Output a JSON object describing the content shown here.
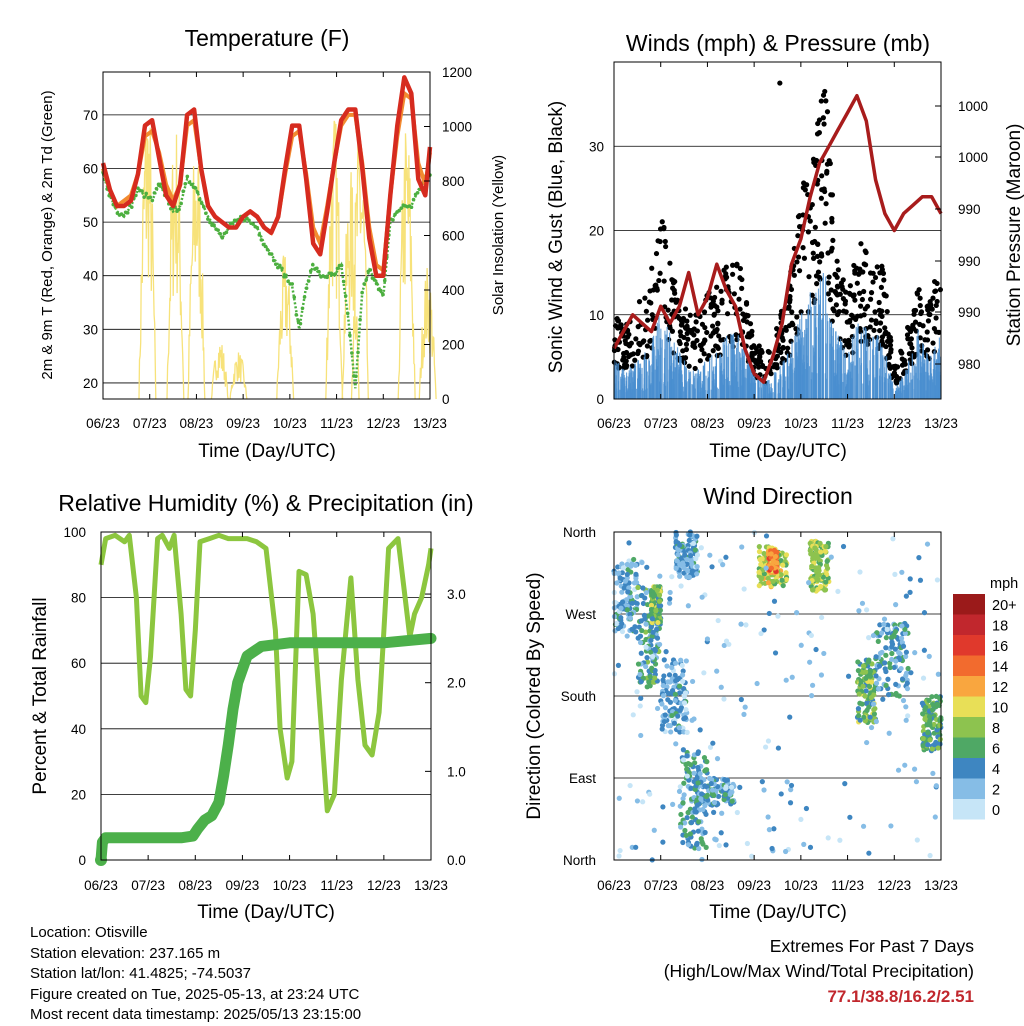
{
  "chart_data": [
    {
      "type": "line",
      "title": "Temperature (F)",
      "xlabel": "Time (Day/UTC)",
      "ylabel": "2m & 9m T (Red, Orange) & 2m Td (Green)",
      "y2label": "Solar Insolation (Yellow)",
      "x_ticks": [
        "06/23",
        "07/23",
        "08/23",
        "09/23",
        "10/23",
        "11/23",
        "12/23",
        "13/23"
      ],
      "ylim": [
        17,
        78
      ],
      "y_ticks": [
        20,
        30,
        40,
        50,
        60,
        70
      ],
      "y2lim": [
        0,
        1200
      ],
      "y2_ticks": [
        0,
        200,
        400,
        600,
        800,
        1000,
        1200
      ],
      "grid": true,
      "colors": {
        "t2m": "#d62b1f",
        "t9m": "#f28b30",
        "td": "#4caf3f",
        "solar": "#f7e27a"
      },
      "series": [
        {
          "key": "t2m",
          "x": [
            0,
            0.15,
            0.3,
            0.45,
            0.6,
            0.75,
            0.9,
            1.05,
            1.2,
            1.35,
            1.5,
            1.65,
            1.8,
            1.95,
            2.1,
            2.25,
            2.4,
            2.55,
            2.7,
            2.85,
            3.0,
            3.15,
            3.3,
            3.45,
            3.6,
            3.75,
            3.9,
            4.05,
            4.2,
            4.35,
            4.5,
            4.65,
            4.8,
            4.95,
            5.1,
            5.25,
            5.4,
            5.55,
            5.7,
            5.85,
            6.0,
            6.15,
            6.3,
            6.45,
            6.6,
            6.75,
            6.9,
            7.0
          ],
          "y": [
            61,
            56,
            53,
            53,
            54,
            59,
            68,
            69,
            62,
            55,
            53,
            57,
            70,
            71,
            60,
            53,
            51,
            50,
            49,
            49,
            51,
            52,
            51,
            49,
            48,
            51,
            60,
            68,
            68,
            58,
            46,
            44,
            52,
            61,
            69,
            71,
            71,
            60,
            47,
            40,
            40,
            55,
            68,
            77,
            74,
            58,
            55,
            64
          ]
        },
        {
          "key": "t9m",
          "x": [
            0,
            0.15,
            0.3,
            0.45,
            0.6,
            0.75,
            0.9,
            1.05,
            1.2,
            1.35,
            1.5,
            1.65,
            1.8,
            1.95,
            2.1,
            2.25,
            2.4,
            2.55,
            2.7,
            2.85,
            3.0,
            3.15,
            3.3,
            3.45,
            3.6,
            3.75,
            3.9,
            4.05,
            4.2,
            4.35,
            4.5,
            4.65,
            4.8,
            4.95,
            5.1,
            5.25,
            5.4,
            5.55,
            5.7,
            5.85,
            6.0,
            6.15,
            6.3,
            6.45,
            6.6,
            6.75,
            6.9,
            7.0
          ],
          "y": [
            60,
            56,
            53,
            54,
            55,
            59,
            66,
            67,
            63,
            57,
            54,
            57,
            68,
            69,
            60,
            53,
            51,
            50,
            49,
            49,
            51,
            52,
            51,
            49,
            48,
            51,
            59,
            66,
            67,
            59,
            49,
            46,
            53,
            61,
            68,
            70,
            70,
            61,
            49,
            42,
            41,
            55,
            66,
            74,
            73,
            61,
            57,
            63
          ]
        },
        {
          "key": "td",
          "x": [
            0,
            0.15,
            0.3,
            0.45,
            0.6,
            0.75,
            0.9,
            1.05,
            1.2,
            1.35,
            1.5,
            1.65,
            1.8,
            1.95,
            2.1,
            2.25,
            2.4,
            2.55,
            2.7,
            2.85,
            3.0,
            3.15,
            3.3,
            3.45,
            3.6,
            3.75,
            3.9,
            4.05,
            4.2,
            4.35,
            4.5,
            4.65,
            4.8,
            4.95,
            5.1,
            5.25,
            5.4,
            5.55,
            5.7,
            5.85,
            6.0,
            6.15,
            6.3,
            6.45,
            6.6,
            6.75,
            6.9,
            7.0
          ],
          "y": [
            59,
            55,
            52,
            51,
            53,
            56,
            55,
            54,
            57,
            55,
            52,
            53,
            58,
            57,
            54,
            51,
            49,
            47,
            49,
            50,
            51,
            50,
            49,
            46,
            44,
            42,
            40,
            38,
            30,
            38,
            42,
            40,
            40,
            40,
            42,
            32,
            19,
            37,
            41,
            39,
            36,
            50,
            52,
            53,
            53,
            56,
            58,
            59
          ]
        },
        {
          "key": "solar",
          "peaks": [
            [
              0.95,
              1180
            ],
            [
              1.55,
              1050
            ],
            [
              2.0,
              1000
            ],
            [
              2.5,
              230
            ],
            [
              2.9,
              180
            ],
            [
              3.9,
              550
            ],
            [
              4.95,
              1080
            ],
            [
              5.3,
              850
            ],
            [
              5.5,
              1060
            ],
            [
              6.5,
              1050
            ],
            [
              6.95,
              500
            ]
          ]
        }
      ]
    },
    {
      "type": "scatter",
      "title": "Winds (mph) & Pressure (mb)",
      "xlabel": "Time (Day/UTC)",
      "ylabel": "Sonic Wind & Gust (Blue, Black)",
      "y2label": "Station Pressure (Maroon)",
      "x_ticks": [
        "06/23",
        "07/23",
        "08/23",
        "09/23",
        "10/23",
        "11/23",
        "12/23",
        "13/23"
      ],
      "ylim": [
        0,
        40
      ],
      "y_ticks": [
        0,
        10,
        20,
        30
      ],
      "y2_tick_labels": [
        "980",
        "990",
        "990",
        "990",
        "1000",
        "1000"
      ],
      "grid": true,
      "colors": {
        "gust": "#000000",
        "wind": "#4a8fd0",
        "pressure": "#a81c1c"
      },
      "series": [
        {
          "key": "pressure",
          "x": [
            0,
            0.2,
            0.4,
            0.6,
            0.8,
            1.0,
            1.2,
            1.4,
            1.6,
            1.8,
            2.0,
            2.2,
            2.4,
            2.6,
            2.8,
            3.0,
            3.2,
            3.4,
            3.6,
            3.8,
            4.0,
            4.2,
            4.4,
            4.6,
            4.8,
            5.0,
            5.2,
            5.4,
            5.6,
            5.8,
            6.0,
            6.2,
            6.4,
            6.6,
            6.8,
            7.0
          ],
          "y": [
            6,
            8,
            10,
            9,
            8,
            11,
            9,
            11,
            15,
            10,
            12,
            16,
            13,
            11,
            6,
            3,
            2,
            5,
            9,
            16,
            19,
            24,
            28,
            30,
            32,
            34,
            36,
            33,
            26,
            22,
            20,
            22,
            23,
            24,
            24,
            22
          ]
        },
        {
          "key": "gust",
          "x": [
            0,
            0.25,
            0.5,
            0.75,
            1.0,
            1.25,
            1.5,
            1.75,
            2.0,
            2.25,
            2.5,
            2.75,
            3.0,
            3.25,
            3.5,
            3.75,
            4.0,
            4.25,
            4.5,
            4.75,
            5.0,
            5.25,
            5.5,
            5.75,
            6.0,
            6.25,
            6.5,
            6.75,
            7.0
          ],
          "y": [
            8,
            7,
            9,
            11,
            18,
            12,
            9,
            8,
            10,
            11,
            14,
            13,
            6,
            4,
            7,
            11,
            20,
            24,
            33,
            14,
            10,
            15,
            14,
            13,
            3,
            6,
            12,
            9,
            14
          ]
        },
        {
          "key": "wind",
          "x": [
            0,
            0.25,
            0.5,
            0.75,
            1.0,
            1.25,
            1.5,
            1.75,
            2.0,
            2.25,
            2.5,
            2.75,
            3.0,
            3.25,
            3.5,
            3.75,
            4.0,
            4.25,
            4.5,
            4.75,
            5.0,
            5.25,
            5.5,
            5.75,
            6.0,
            6.25,
            6.5,
            6.75,
            7.0
          ],
          "y": [
            4,
            3,
            4,
            5,
            9,
            6,
            4,
            3,
            4,
            5,
            7,
            6,
            3,
            2,
            3,
            5,
            9,
            11,
            13,
            7,
            5,
            8,
            7,
            6,
            1,
            3,
            7,
            4,
            7
          ]
        }
      ]
    },
    {
      "type": "line",
      "title": "Relative Humidity (%) & Precipitation (in)",
      "xlabel": "Time (Day/UTC)",
      "ylabel": "Percent & Total Rainfall",
      "x_ticks": [
        "06/23",
        "07/23",
        "08/23",
        "09/23",
        "10/23",
        "11/23",
        "12/23",
        "13/23"
      ],
      "ylim": [
        0,
        100
      ],
      "y_ticks": [
        0,
        20,
        40,
        60,
        80,
        100
      ],
      "y2lim": [
        0,
        3.7
      ],
      "y2_ticks": [
        "0.0",
        "1.0",
        "2.0",
        "3.0"
      ],
      "grid": true,
      "colors": {
        "rh": "#8cc63f",
        "precip": "#4cb04a"
      },
      "series": [
        {
          "key": "rh",
          "x": [
            0,
            0.1,
            0.3,
            0.5,
            0.6,
            0.75,
            0.85,
            0.95,
            1.05,
            1.2,
            1.3,
            1.45,
            1.55,
            1.7,
            1.8,
            1.9,
            2.0,
            2.1,
            2.3,
            2.5,
            2.7,
            2.9,
            3.1,
            3.3,
            3.5,
            3.7,
            3.8,
            3.95,
            4.05,
            4.2,
            4.35,
            4.5,
            4.65,
            4.8,
            4.95,
            5.1,
            5.3,
            5.45,
            5.6,
            5.75,
            5.9,
            6.0,
            6.1,
            6.3,
            6.45,
            6.55,
            6.65,
            6.8,
            6.95,
            7.0
          ],
          "y": [
            90,
            98,
            99,
            97,
            99,
            80,
            50,
            48,
            62,
            98,
            99,
            95,
            99,
            75,
            52,
            50,
            70,
            97,
            98,
            99,
            98,
            98,
            98,
            97,
            95,
            70,
            40,
            25,
            30,
            88,
            87,
            75,
            45,
            15,
            20,
            55,
            86,
            55,
            35,
            32,
            45,
            70,
            95,
            98,
            80,
            68,
            75,
            80,
            90,
            95
          ]
        },
        {
          "key": "precip",
          "x": [
            0,
            0.03,
            0.1,
            1.7,
            1.95,
            2.05,
            2.2,
            2.35,
            2.5,
            2.6,
            2.7,
            2.8,
            2.9,
            3.1,
            3.4,
            4.0,
            5.0,
            6.0,
            7.0
          ],
          "y": [
            0,
            0.2,
            0.25,
            0.25,
            0.27,
            0.35,
            0.45,
            0.5,
            0.65,
            0.95,
            1.3,
            1.7,
            2.0,
            2.3,
            2.41,
            2.45,
            2.45,
            2.45,
            2.5
          ]
        }
      ]
    },
    {
      "type": "scatter",
      "title": "Wind Direction",
      "xlabel": "Time (Day/UTC)",
      "ylabel": "Direction (Colored By Speed)",
      "x_ticks": [
        "06/23",
        "07/23",
        "08/23",
        "09/23",
        "10/23",
        "11/23",
        "12/23",
        "13/23"
      ],
      "y_ticks": [
        "North",
        "East",
        "South",
        "West",
        "North"
      ],
      "ylim": [
        0,
        360
      ],
      "grid": true,
      "legend": {
        "title": "mph",
        "labels": [
          "20+",
          "18",
          "16",
          "14",
          "12",
          "10",
          "8",
          "6",
          "4",
          "2",
          "0"
        ],
        "colors": [
          "#9b1a1a",
          "#c1272d",
          "#e0392c",
          "#f26b2e",
          "#f9a63f",
          "#e8df57",
          "#8dc34f",
          "#4fa865",
          "#3e86c1",
          "#86bde6",
          "#c6e5f7"
        ]
      },
      "clusters": [
        {
          "x": [
            0.0,
            0.5
          ],
          "y": [
            250,
            330
          ],
          "speed": 3
        },
        {
          "x": [
            0.5,
            1.0
          ],
          "y": [
            190,
            300
          ],
          "speed": 5
        },
        {
          "x": [
            0.8,
            1.0
          ],
          "y": [
            260,
            300
          ],
          "speed": 7
        },
        {
          "x": [
            1.0,
            1.6
          ],
          "y": [
            140,
            220
          ],
          "speed": 3
        },
        {
          "x": [
            1.4,
            2.0
          ],
          "y": [
            10,
            120
          ],
          "speed": 4
        },
        {
          "x": [
            1.7,
            2.6
          ],
          "y": [
            60,
            90
          ],
          "speed": 4
        },
        {
          "x": [
            1.3,
            1.8
          ],
          "y": [
            310,
            360
          ],
          "speed": 3
        },
        {
          "x": [
            3.1,
            3.7
          ],
          "y": [
            300,
            345
          ],
          "speed": 9
        },
        {
          "x": [
            3.3,
            3.5
          ],
          "y": [
            315,
            340
          ],
          "speed": 13
        },
        {
          "x": [
            4.2,
            4.6
          ],
          "y": [
            295,
            350
          ],
          "speed": 8
        },
        {
          "x": [
            5.2,
            5.6
          ],
          "y": [
            150,
            220
          ],
          "speed": 7
        },
        {
          "x": [
            5.6,
            6.3
          ],
          "y": [
            180,
            260
          ],
          "speed": 4
        },
        {
          "x": [
            6.6,
            7.0
          ],
          "y": [
            120,
            180
          ],
          "speed": 6
        },
        {
          "x": [
            0.0,
            7.0
          ],
          "y": [
            0,
            360
          ],
          "speed": 2
        }
      ]
    }
  ],
  "info": {
    "location": "Location: Otisville",
    "elevation": "Station elevation: 237.165 m",
    "latlon": "Station lat/lon: 41.4825; -74.5037",
    "created": "Figure created on Tue, 2025-05-13, at 23:24 UTC",
    "recent": "Most recent data timestamp: 2025/05/13 23:15:00"
  },
  "extremes": {
    "line1": "Extremes For Past 7 Days",
    "line2": "(High/Low/Max Wind/Total Precipitation)",
    "values": "77.1/38.8/16.2/2.51"
  }
}
